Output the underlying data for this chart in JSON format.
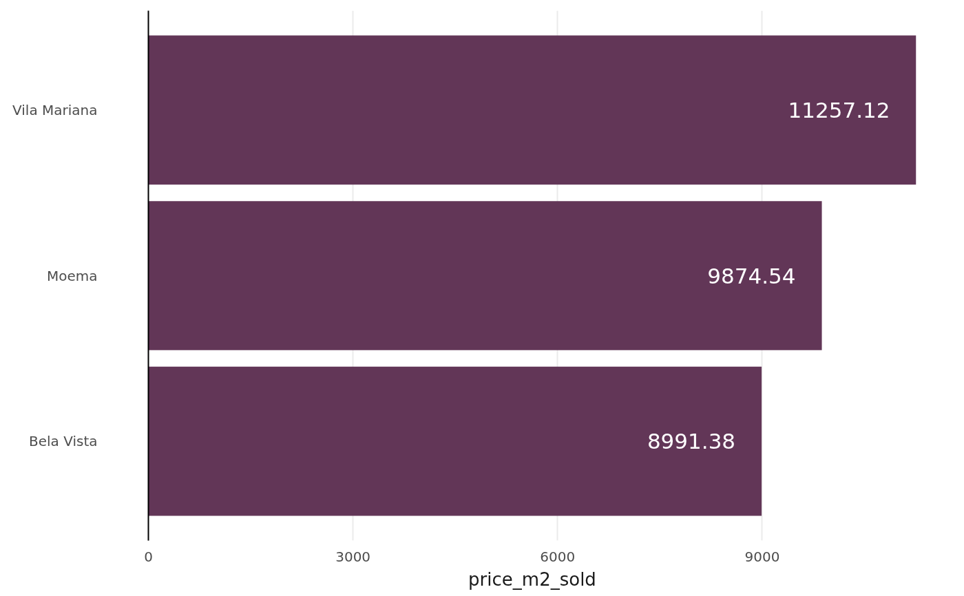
{
  "chart_data": {
    "type": "bar",
    "orientation": "horizontal",
    "categories": [
      "Vila Mariana",
      "Moema",
      "Bela Vista"
    ],
    "values": [
      11257.12,
      9874.54,
      8991.38
    ],
    "color": "#623657",
    "xlabel": "price_m2_sold",
    "xlim": [
      0,
      11257.12
    ],
    "xticks": [
      0,
      3000,
      6000,
      9000
    ],
    "grid": "x",
    "data_labels": true
  }
}
